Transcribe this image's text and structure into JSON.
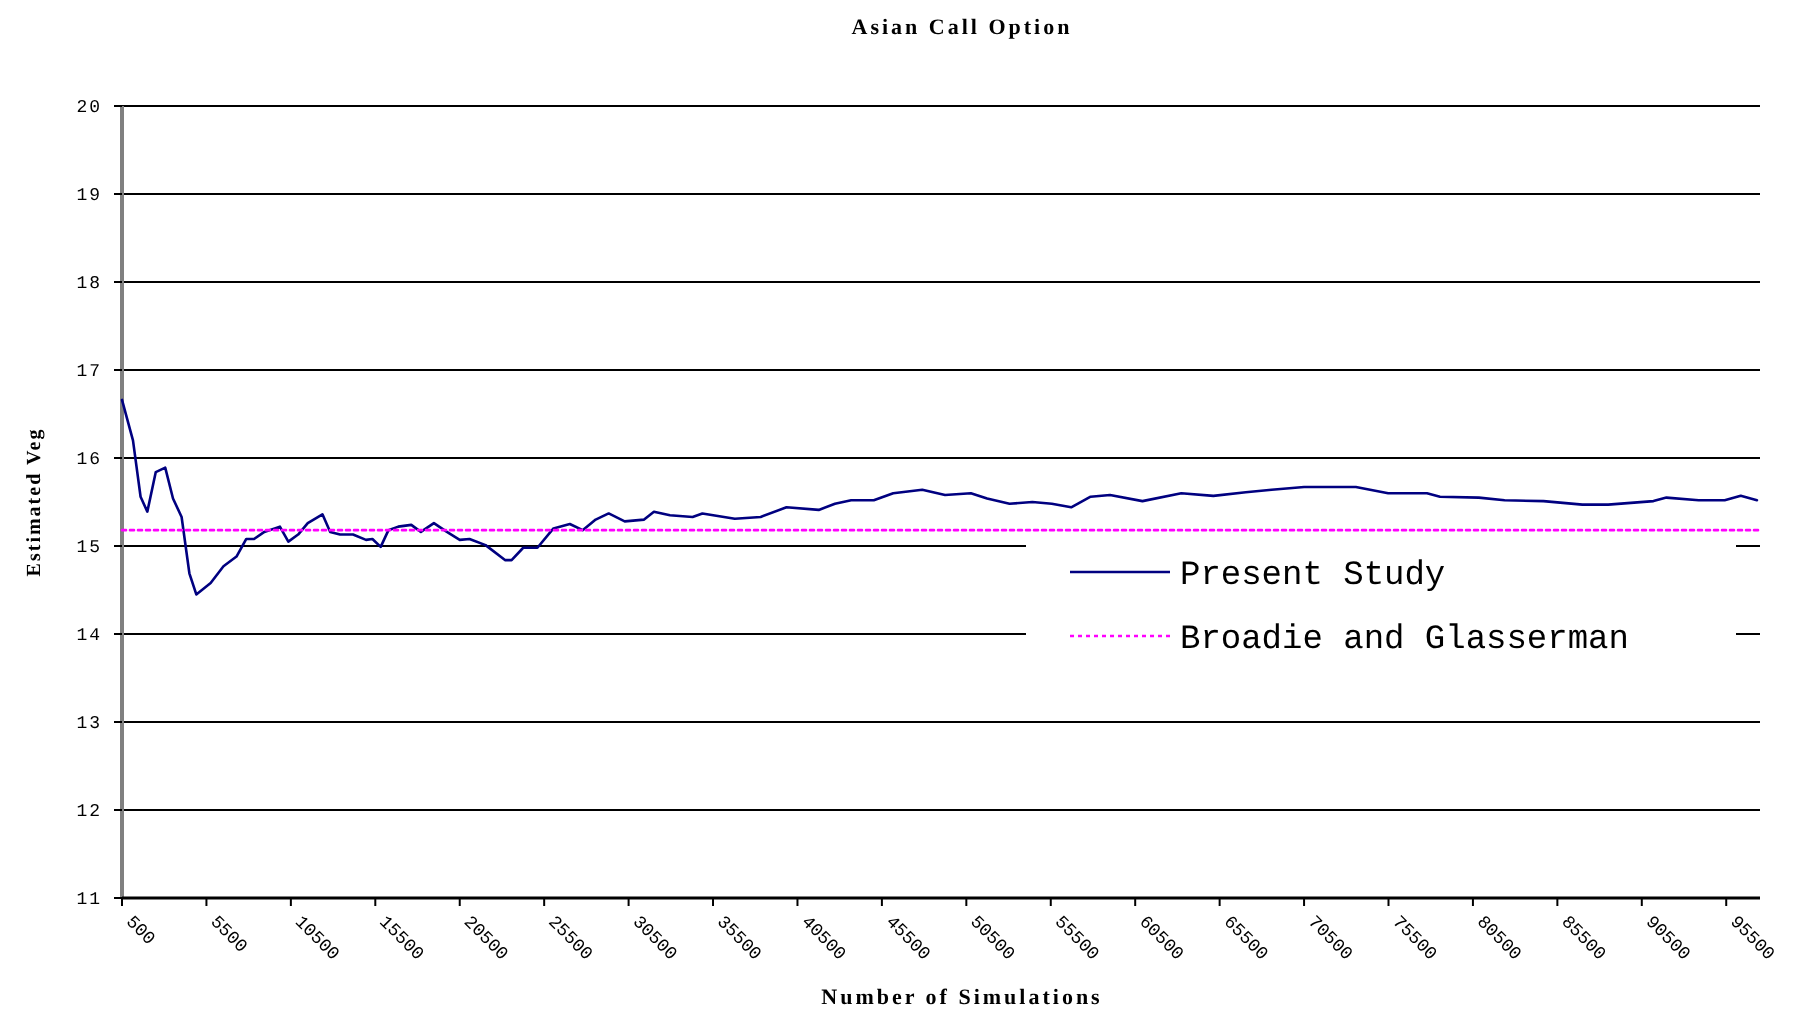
{
  "chart_data": {
    "type": "line",
    "title": "Asian Call Option",
    "xlabel": "Number of Simulations",
    "ylabel": "Estimated Veg",
    "xlim": [
      500,
      97500
    ],
    "xticks": [
      500,
      5500,
      10500,
      15500,
      20500,
      25500,
      30500,
      35500,
      40500,
      45500,
      50500,
      55500,
      60500,
      65500,
      70500,
      75500,
      80500,
      85500,
      90500,
      95500
    ],
    "ylim": [
      11,
      20
    ],
    "yticks": [
      11,
      12,
      13,
      14,
      15,
      16,
      17,
      18,
      19,
      20
    ],
    "grid": "y",
    "legend": "right",
    "marker": "none",
    "series": [
      {
        "name": "Present Study",
        "color": "#000080",
        "line_style": "solid",
        "x": [
          500,
          1150,
          1600,
          2000,
          2500,
          3060,
          3520,
          4030,
          4490,
          4900,
          5750,
          6510,
          7280,
          7860,
          8320,
          8930,
          9850,
          10350,
          10930,
          11500,
          12370,
          12830,
          13410,
          14180,
          14950,
          15330,
          15820,
          16280,
          16860,
          17630,
          18200,
          18970,
          19740,
          20500,
          21080,
          22030,
          23180,
          23570,
          24260,
          25100,
          26050,
          27020,
          27780,
          28550,
          29320,
          30270,
          31420,
          32000,
          32950,
          34290,
          34870,
          36790,
          38320,
          39850,
          41760,
          42720,
          43680,
          45020,
          46170,
          47890,
          49240,
          50770,
          51730,
          53060,
          54410,
          55560,
          56710,
          57860,
          59010,
          60930,
          63230,
          65130,
          67050,
          68580,
          70500,
          73570,
          75480,
          77780,
          78550,
          80850,
          82380,
          84680,
          86980,
          88510,
          91190,
          91960,
          93870,
          95410,
          96360,
          97320
        ],
        "values": [
          16.66,
          16.2,
          15.56,
          15.39,
          15.84,
          15.89,
          15.54,
          15.33,
          14.69,
          14.45,
          14.58,
          14.77,
          14.88,
          15.08,
          15.08,
          15.16,
          15.22,
          15.05,
          15.13,
          15.26,
          15.36,
          15.16,
          15.13,
          15.13,
          15.07,
          15.08,
          14.99,
          15.18,
          15.22,
          15.24,
          15.16,
          15.26,
          15.16,
          15.07,
          15.08,
          15.01,
          14.84,
          14.84,
          14.98,
          14.98,
          15.2,
          15.25,
          15.18,
          15.3,
          15.37,
          15.28,
          15.3,
          15.39,
          15.35,
          15.33,
          15.37,
          15.31,
          15.33,
          15.44,
          15.41,
          15.48,
          15.52,
          15.52,
          15.6,
          15.64,
          15.58,
          15.6,
          15.54,
          15.48,
          15.5,
          15.48,
          15.44,
          15.56,
          15.58,
          15.51,
          15.6,
          15.57,
          15.61,
          15.64,
          15.67,
          15.67,
          15.6,
          15.6,
          15.56,
          15.55,
          15.52,
          15.51,
          15.47,
          15.47,
          15.51,
          15.55,
          15.52,
          15.52,
          15.57,
          15.52
        ]
      },
      {
        "name": "Broadie and Glasserman",
        "color": "#ff00ff",
        "line_style": "dotted",
        "x": [
          500,
          97500
        ],
        "values": [
          15.18,
          15.18
        ]
      }
    ]
  }
}
